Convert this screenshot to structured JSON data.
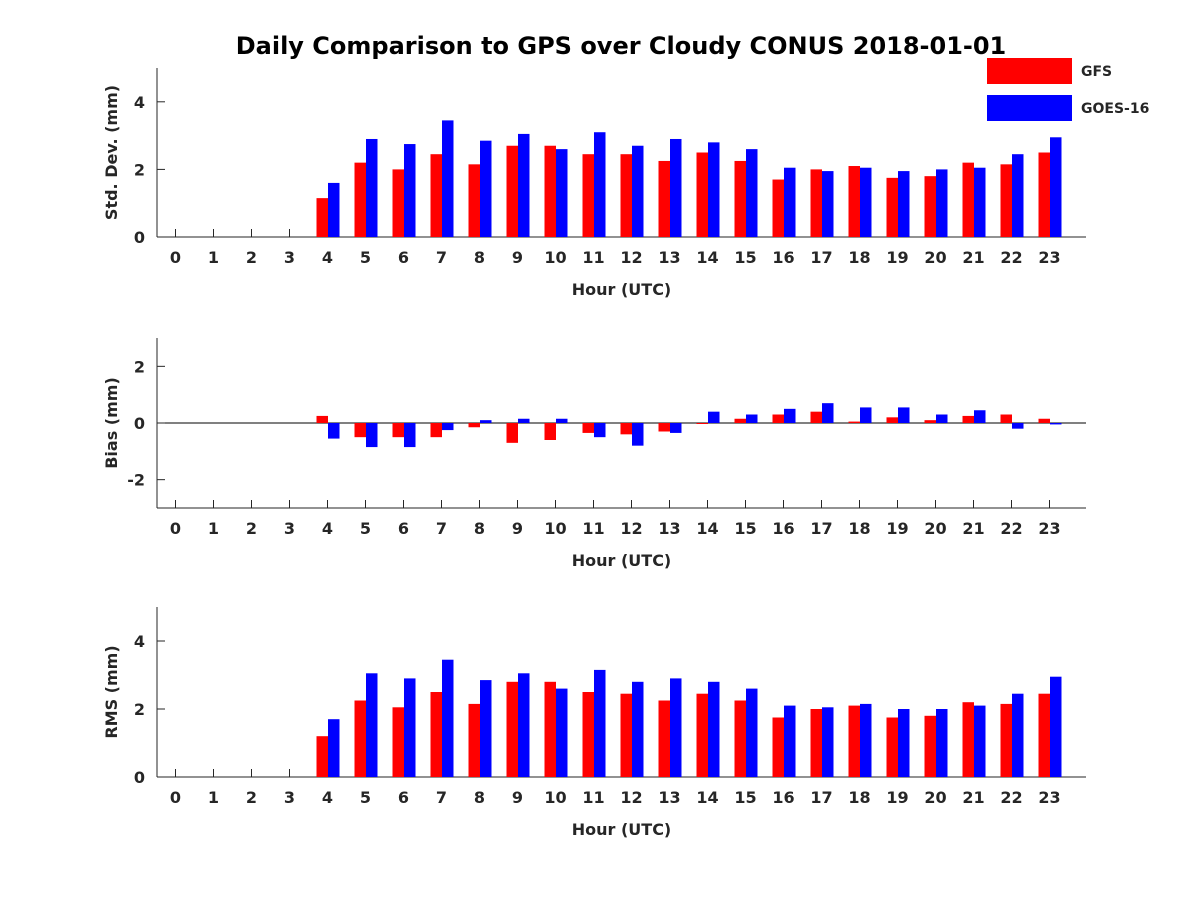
{
  "title": "Daily Comparison to GPS over Cloudy CONUS 2018-01-01",
  "legend": [
    {
      "name": "GFS",
      "color": "#ff0000"
    },
    {
      "name": "GOES-16",
      "color": "#0000ff"
    }
  ],
  "chart_data": [
    {
      "type": "bar",
      "ylabel": "Std. Dev. (mm)",
      "xlabel": "Hour (UTC)",
      "categories": [
        "0",
        "1",
        "2",
        "3",
        "4",
        "5",
        "6",
        "7",
        "8",
        "9",
        "10",
        "11",
        "12",
        "13",
        "14",
        "15",
        "16",
        "17",
        "18",
        "19",
        "20",
        "21",
        "22",
        "23"
      ],
      "ylim": [
        0,
        5
      ],
      "yticks": [
        0,
        2,
        4
      ],
      "ytick_labels": [
        "0",
        "2",
        "4"
      ],
      "series": [
        {
          "name": "GFS",
          "color": "#ff0000",
          "values": [
            null,
            null,
            null,
            null,
            1.15,
            2.2,
            2.0,
            2.45,
            2.15,
            2.7,
            2.7,
            2.45,
            2.45,
            2.25,
            2.5,
            2.25,
            1.7,
            2.0,
            2.1,
            1.75,
            1.8,
            2.2,
            2.15,
            2.5
          ]
        },
        {
          "name": "GOES-16",
          "color": "#0000ff",
          "values": [
            null,
            null,
            null,
            null,
            1.6,
            2.9,
            2.75,
            3.45,
            2.85,
            3.05,
            2.6,
            3.1,
            2.7,
            2.9,
            2.8,
            2.6,
            2.05,
            1.95,
            2.05,
            1.95,
            2.0,
            2.05,
            2.45,
            2.95
          ]
        }
      ]
    },
    {
      "type": "bar",
      "ylabel": "Bias (mm)",
      "xlabel": "Hour (UTC)",
      "categories": [
        "0",
        "1",
        "2",
        "3",
        "4",
        "5",
        "6",
        "7",
        "8",
        "9",
        "10",
        "11",
        "12",
        "13",
        "14",
        "15",
        "16",
        "17",
        "18",
        "19",
        "20",
        "21",
        "22",
        "23"
      ],
      "ylim": [
        -3,
        3
      ],
      "yticks": [
        -2,
        0,
        2
      ],
      "ytick_labels": [
        "-2",
        "0",
        "2"
      ],
      "series": [
        {
          "name": "GFS",
          "color": "#ff0000",
          "values": [
            null,
            null,
            null,
            null,
            0.25,
            -0.5,
            -0.5,
            -0.5,
            -0.15,
            -0.7,
            -0.6,
            -0.35,
            -0.4,
            -0.3,
            0.0,
            0.15,
            0.3,
            0.4,
            0.05,
            0.2,
            0.1,
            0.25,
            0.3,
            0.15
          ]
        },
        {
          "name": "GOES-16",
          "color": "#0000ff",
          "values": [
            null,
            null,
            null,
            null,
            -0.55,
            -0.85,
            -0.85,
            -0.25,
            0.1,
            0.15,
            0.15,
            -0.5,
            -0.8,
            -0.35,
            0.4,
            0.3,
            0.5,
            0.7,
            0.55,
            0.55,
            0.3,
            0.45,
            -0.2,
            -0.05
          ]
        }
      ]
    },
    {
      "type": "bar",
      "ylabel": "RMS (mm)",
      "xlabel": "Hour (UTC)",
      "categories": [
        "0",
        "1",
        "2",
        "3",
        "4",
        "5",
        "6",
        "7",
        "8",
        "9",
        "10",
        "11",
        "12",
        "13",
        "14",
        "15",
        "16",
        "17",
        "18",
        "19",
        "20",
        "21",
        "22",
        "23"
      ],
      "ylim": [
        0,
        5
      ],
      "yticks": [
        0,
        2,
        4
      ],
      "ytick_labels": [
        "0",
        "2",
        "4"
      ],
      "series": [
        {
          "name": "GFS",
          "color": "#ff0000",
          "values": [
            null,
            null,
            null,
            null,
            1.2,
            2.25,
            2.05,
            2.5,
            2.15,
            2.8,
            2.8,
            2.5,
            2.45,
            2.25,
            2.45,
            2.25,
            1.75,
            2.0,
            2.1,
            1.75,
            1.8,
            2.2,
            2.15,
            2.45
          ]
        },
        {
          "name": "GOES-16",
          "color": "#0000ff",
          "values": [
            null,
            null,
            null,
            null,
            1.7,
            3.05,
            2.9,
            3.45,
            2.85,
            3.05,
            2.6,
            3.15,
            2.8,
            2.9,
            2.8,
            2.6,
            2.1,
            2.05,
            2.15,
            2.0,
            2.0,
            2.1,
            2.45,
            2.95
          ]
        }
      ]
    }
  ]
}
